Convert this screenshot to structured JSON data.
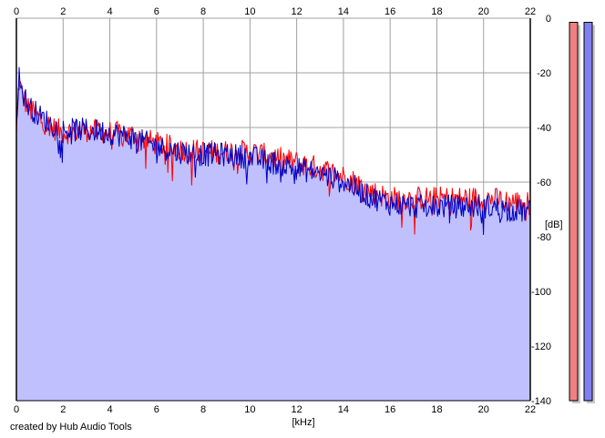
{
  "chart_data": {
    "type": "area",
    "title": "",
    "xlabel": "[kHz]",
    "ylabel": "[dB]",
    "xlim": [
      0,
      22
    ],
    "ylim": [
      -140,
      0
    ],
    "x_ticks": [
      "0",
      "2",
      "4",
      "6",
      "8",
      "10",
      "12",
      "14",
      "16",
      "18",
      "20",
      "22"
    ],
    "y_ticks": [
      "0",
      "-20",
      "-40",
      "-60",
      "-80",
      "-100",
      "-120",
      "-140"
    ],
    "grid": true,
    "x_ticks_top_and_bottom": true,
    "y_ticks_side": "right",
    "fill_color": "#c0c0ff",
    "series": [
      {
        "color": "#ff0000",
        "x": [
          0,
          0.1,
          0.25,
          0.5,
          1,
          1.5,
          2,
          3,
          4,
          5,
          6,
          7,
          8,
          9,
          10,
          11,
          12,
          13,
          14,
          14.5,
          15,
          16,
          17,
          18,
          19,
          20,
          21,
          22
        ],
        "y": [
          -42,
          -22,
          -27,
          -32,
          -36,
          -39,
          -41,
          -40,
          -41,
          -42,
          -45,
          -47,
          -48,
          -48,
          -48,
          -50,
          -52,
          -54,
          -57,
          -59,
          -62,
          -65,
          -65,
          -65,
          -65,
          -65,
          -66,
          -67
        ]
      },
      {
        "color": "#0000c0",
        "x": [
          0,
          0.1,
          0.25,
          0.5,
          1,
          1.5,
          2,
          3,
          4,
          5,
          6,
          7,
          8,
          9,
          10,
          11,
          12,
          13,
          14,
          14.5,
          15,
          16,
          17,
          18,
          19,
          20,
          21,
          22
        ],
        "y": [
          -38,
          -20,
          -26,
          -31,
          -35,
          -38,
          -40,
          -40,
          -41,
          -43,
          -46,
          -48,
          -49,
          -49,
          -50,
          -52,
          -54,
          -56,
          -59,
          -61,
          -64,
          -67,
          -68,
          -68,
          -68,
          -68,
          -69,
          -70
        ]
      }
    ],
    "level_meters": [
      {
        "color": "#f08080",
        "value": -1.5
      },
      {
        "color": "#8080f0",
        "value": -1.5
      }
    ]
  },
  "footer": {
    "credit": "created by Hub Audio Tools"
  }
}
